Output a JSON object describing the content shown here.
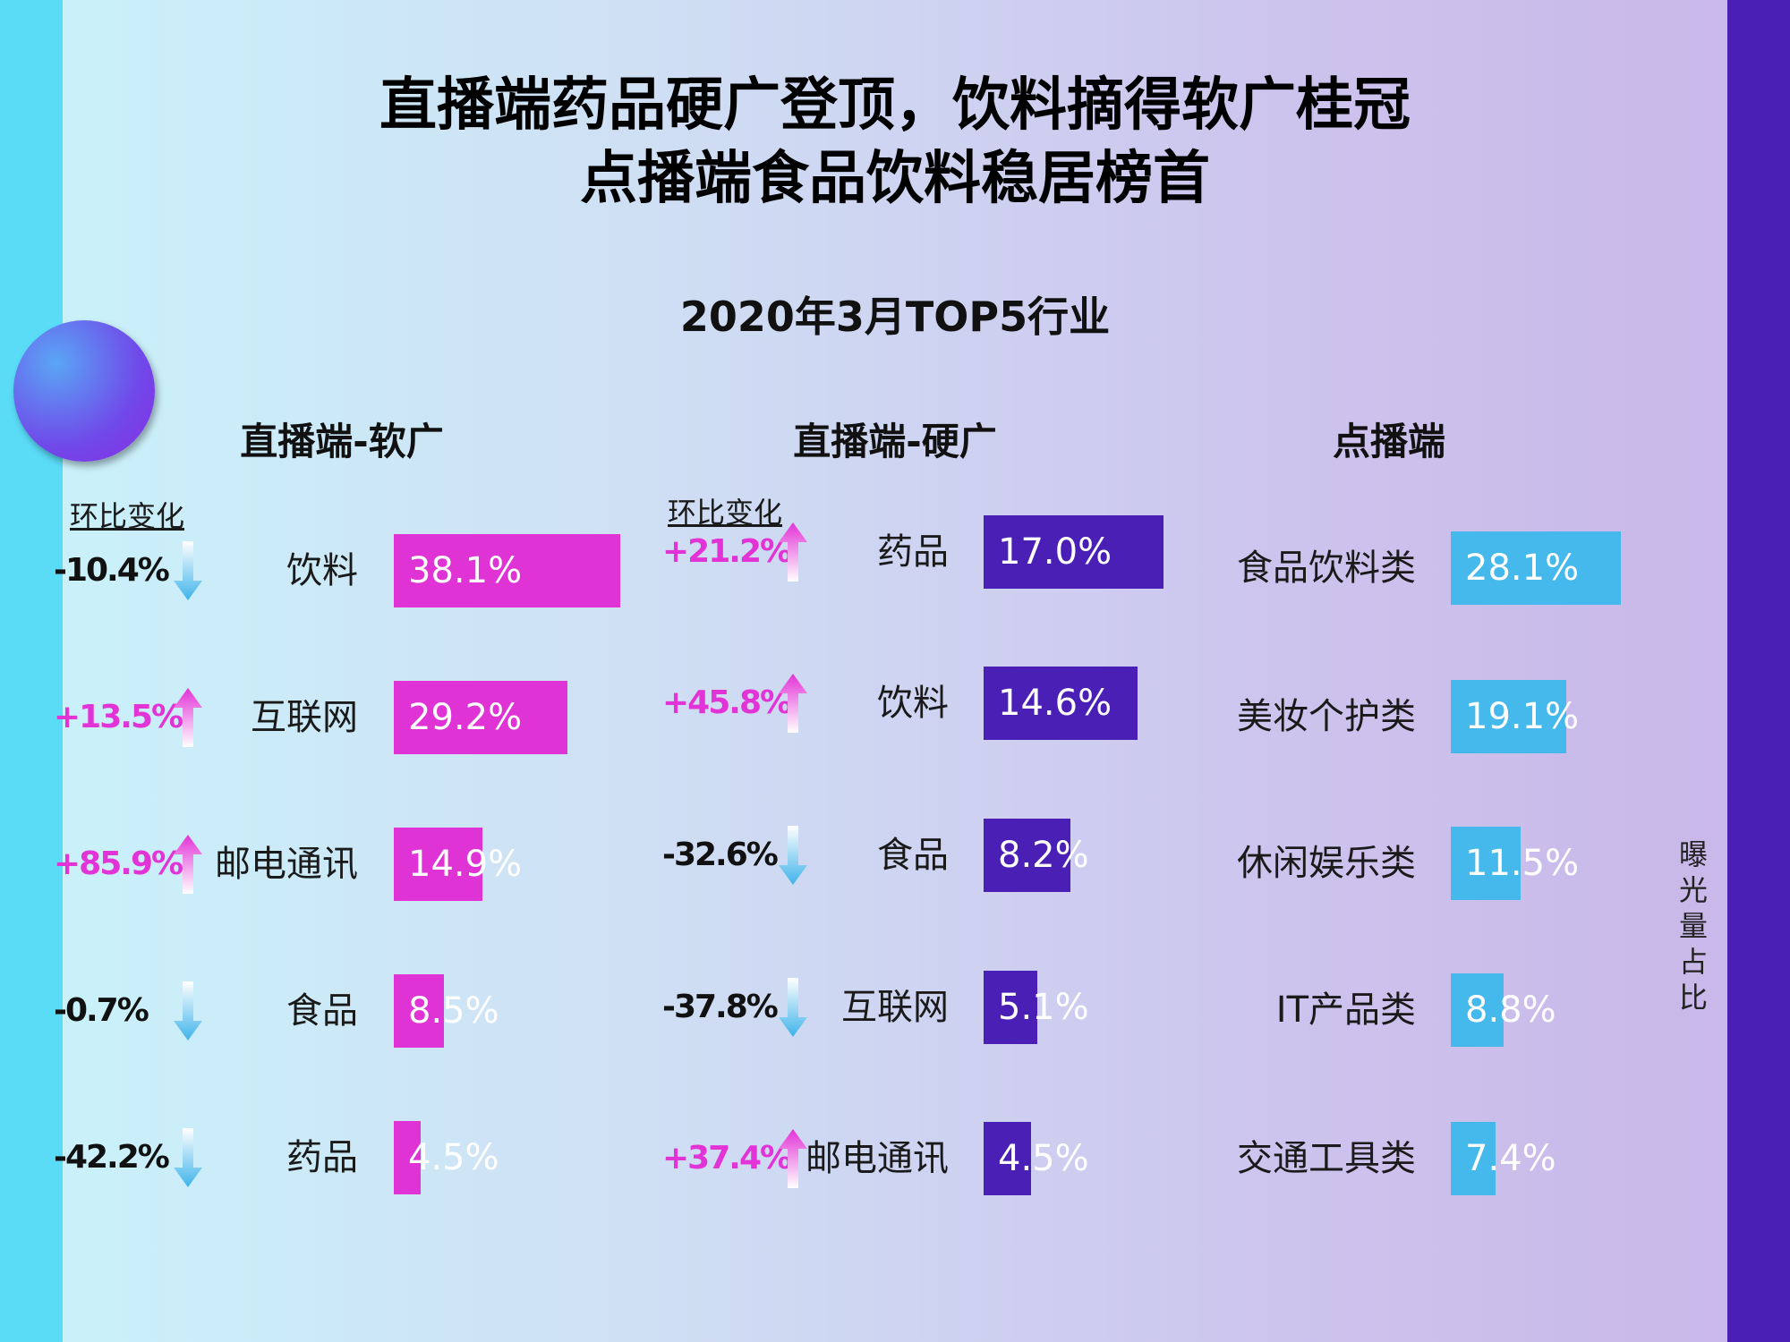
{
  "title_line1": "直播端药品硬广登顶，饮料摘得软广桂冠",
  "title_line2": "点播端食品饮料稳居榜首",
  "subtitle": "2020年3月TOP5行业",
  "change_label": "环比变化",
  "side_note": "曝光量占比",
  "colors": {
    "soft": "#e033d6",
    "hard": "#4a1fb6",
    "vod": "#45b9ec"
  },
  "chart_data": [
    {
      "type": "bar",
      "title": "直播端-软广",
      "categories": [
        "饮料",
        "互联网",
        "邮电通讯",
        "食品",
        "药品"
      ],
      "values": [
        38.1,
        29.2,
        14.9,
        8.5,
        4.5
      ],
      "value_labels": [
        "38.1%",
        "29.2%",
        "14.9%",
        "8.5%",
        "4.5%"
      ],
      "changes": [
        "-10.4%",
        "+13.5%",
        "+85.9%",
        "-0.7%",
        "-42.2%"
      ],
      "change_dirs": [
        "down",
        "up",
        "up",
        "down",
        "down"
      ]
    },
    {
      "type": "bar",
      "title": "直播端-硬广",
      "categories": [
        "药品",
        "饮料",
        "食品",
        "互联网",
        "邮电通讯"
      ],
      "values": [
        17.0,
        14.6,
        8.2,
        5.1,
        4.5
      ],
      "value_labels": [
        "17.0%",
        "14.6%",
        "8.2%",
        "5.1%",
        "4.5%"
      ],
      "changes": [
        "+21.2%",
        "+45.8%",
        "-32.6%",
        "-37.8%",
        "+37.4%"
      ],
      "change_dirs": [
        "up",
        "up",
        "down",
        "down",
        "up"
      ]
    },
    {
      "type": "bar",
      "title": "点播端",
      "categories": [
        "食品饮料类",
        "美妆个护类",
        "休闲娱乐类",
        "IT产品类",
        "交通工具类"
      ],
      "values": [
        28.1,
        19.1,
        11.5,
        8.8,
        7.4
      ],
      "value_labels": [
        "28.1%",
        "19.1%",
        "11.5%",
        "8.8%",
        "7.4%"
      ]
    }
  ]
}
